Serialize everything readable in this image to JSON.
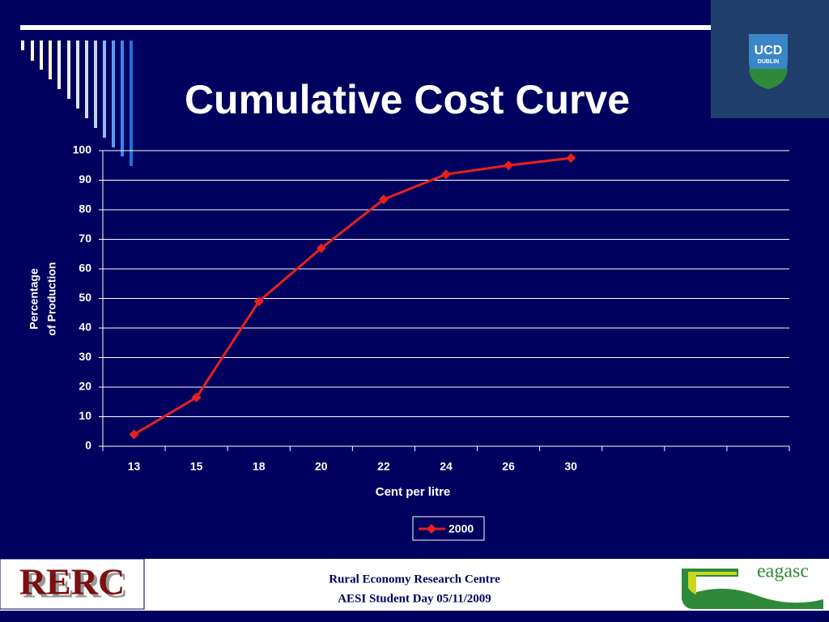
{
  "chart_data": {
    "type": "line",
    "title": "Cumulative Cost Curve",
    "xlabel": "Cent per litre",
    "ylabel": [
      "Percentage",
      "of Production"
    ],
    "categories": [
      "13",
      "15",
      "18",
      "20",
      "22",
      "24",
      "26",
      "30",
      null,
      null,
      null
    ],
    "series": [
      {
        "name": "2000",
        "color": "#e8201c",
        "values": [
          4,
          16.5,
          49,
          67,
          83.5,
          92,
          95,
          97.5,
          null,
          null,
          null
        ]
      }
    ],
    "ylim": [
      0,
      100
    ],
    "yticks": [
      0,
      10,
      20,
      30,
      40,
      50,
      60,
      70,
      80,
      90,
      100
    ],
    "grid": true,
    "legend": "bottom"
  },
  "header": {
    "logo": [
      "UCD",
      "DUBLIN"
    ]
  },
  "footer": {
    "left_logo": "RERC",
    "lines": [
      "Rural Economy Research Centre",
      "AESI Student Day 05/11/2009"
    ],
    "right_logo": "eagasc"
  }
}
